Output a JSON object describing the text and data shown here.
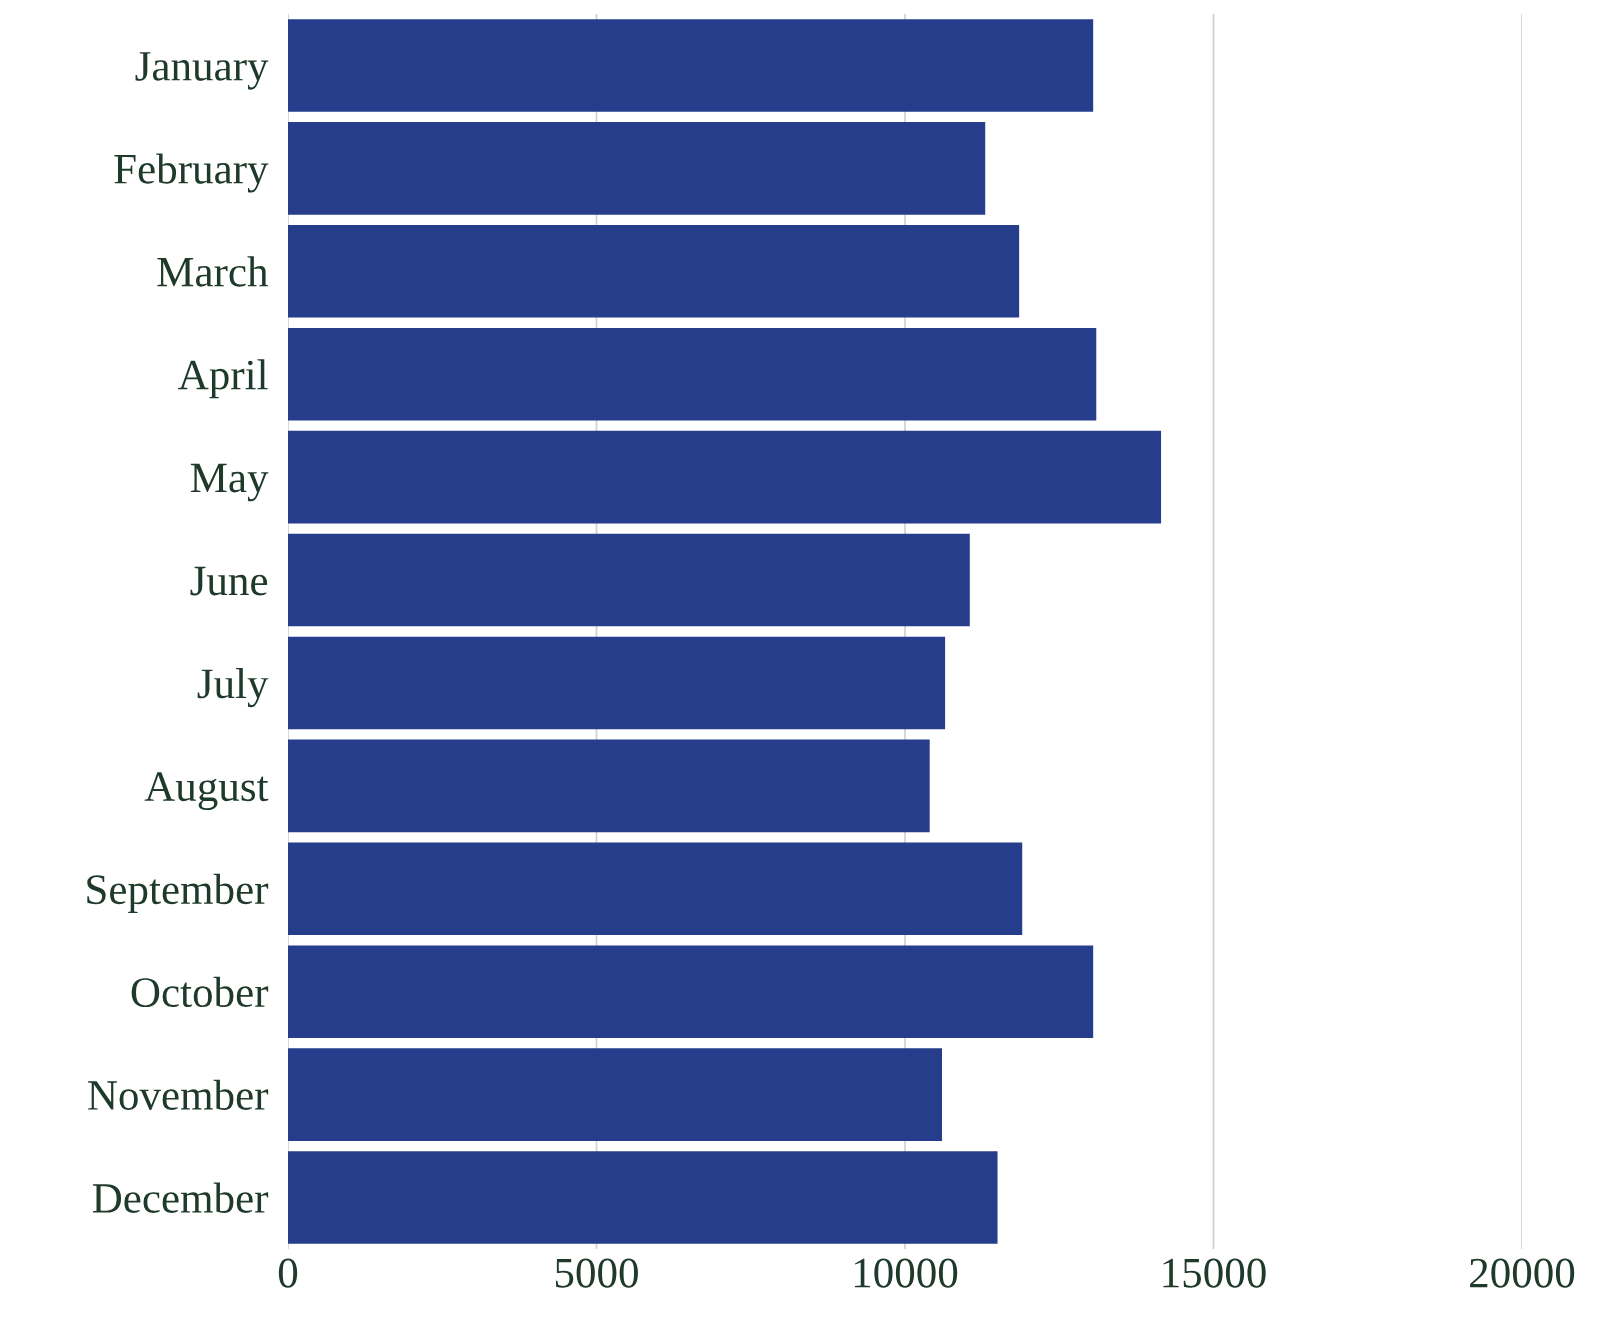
{
  "chart_data": {
    "type": "bar",
    "orientation": "horizontal",
    "categories": [
      "January",
      "February",
      "March",
      "April",
      "May",
      "June",
      "July",
      "August",
      "September",
      "October",
      "November",
      "December"
    ],
    "values": [
      13050,
      11300,
      11850,
      13100,
      14150,
      11050,
      10650,
      10400,
      11900,
      13050,
      10600,
      11500
    ],
    "color": "#253d8a",
    "xlim": [
      0,
      20000
    ],
    "xticks": [
      0,
      5000,
      10000,
      15000,
      20000
    ],
    "grid": "x"
  }
}
